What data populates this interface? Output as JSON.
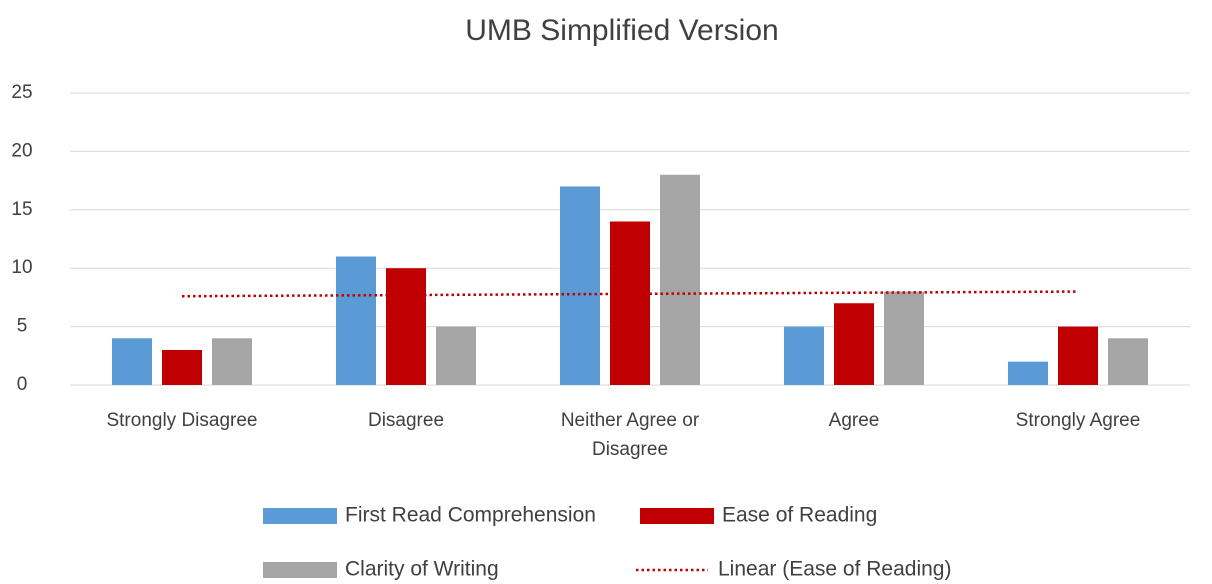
{
  "chart_data": {
    "type": "bar",
    "title": "UMB Simplified Version",
    "categories": [
      "Strongly Disagree",
      "Disagree",
      "Neither Agree or Disagree",
      "Agree",
      "Strongly Agree"
    ],
    "series": [
      {
        "name": "First Read Comprehension",
        "color": "#5b9bd5",
        "values": [
          4,
          11,
          17,
          5,
          2
        ]
      },
      {
        "name": "Ease of Reading",
        "color": "#c00000",
        "values": [
          3,
          10,
          14,
          7,
          5
        ]
      },
      {
        "name": "Clarity of Writing",
        "color": "#a5a5a5",
        "values": [
          4,
          5,
          18,
          8,
          4
        ]
      },
      {
        "name": "Linear  (Ease of Reading)",
        "color": "#c00000",
        "type": "line",
        "style": "dotted",
        "values": [
          7.6,
          7.7,
          7.8,
          7.9,
          8.0
        ]
      }
    ],
    "ylim": [
      0,
      25
    ],
    "yticks": [
      0,
      5,
      10,
      15,
      20,
      25
    ],
    "grid": true,
    "legend": "bottom"
  }
}
